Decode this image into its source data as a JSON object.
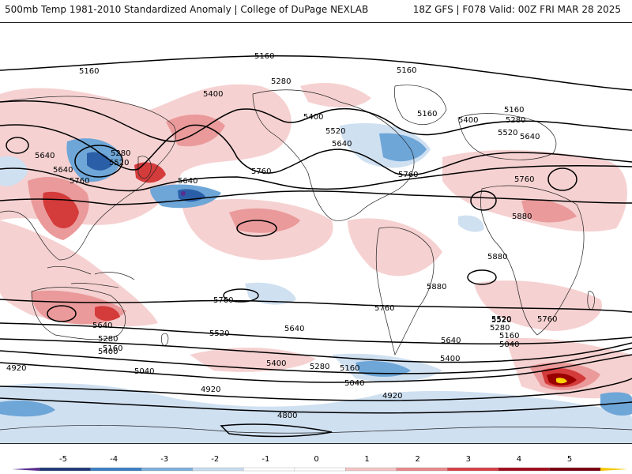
{
  "header": {
    "left": "500mb Temp 1981-2010 Standardized Anomaly | College of DuPage NEXLAB",
    "right": "18Z GFS | F078 Valid: 00Z FRI MAR 28 2025"
  },
  "contour_labels": [
    "5160",
    "5160",
    "5160",
    "5280",
    "5400",
    "5400",
    "5520",
    "5640",
    "5160",
    "5280",
    "5520",
    "5400",
    "5640",
    "5760",
    "5640",
    "5760",
    "5520",
    "5280",
    "5160",
    "5640",
    "5760",
    "5880",
    "5880",
    "5880",
    "5760",
    "5760",
    "5640",
    "5400",
    "5280",
    "5160",
    "5520",
    "5640",
    "5760",
    "5520",
    "5640",
    "5400",
    "5280",
    "5160",
    "5040",
    "4920",
    "5040",
    "4920",
    "4920",
    "4800",
    "5040",
    "5160",
    "5280",
    "5400",
    "5520",
    "5640",
    "5760"
  ],
  "colorbar": {
    "ticks": [
      "-5",
      "-4",
      "-3",
      "-2",
      "-1",
      "0",
      "1",
      "2",
      "3",
      "4",
      "5"
    ],
    "colors": [
      "#5a2d91",
      "#1f3a78",
      "#3b7fc4",
      "#7fb0dc",
      "#c8dcef",
      "#ffffff",
      "#ffffff",
      "#f4c4c4",
      "#e8898c",
      "#d64045",
      "#a10d1d",
      "#7a0010",
      "#f3c800"
    ]
  },
  "anomaly_colors": {
    "strong_cold": "#2a5fa8",
    "cold": "#6ea6d8",
    "weak_cold": "#cfe0f1",
    "weak_warm": "#f6d1d1",
    "warm": "#ea9a9a",
    "strong_warm": "#d43b3b",
    "extreme_warm": "#9b0000",
    "max_warm": "#ffd400"
  }
}
